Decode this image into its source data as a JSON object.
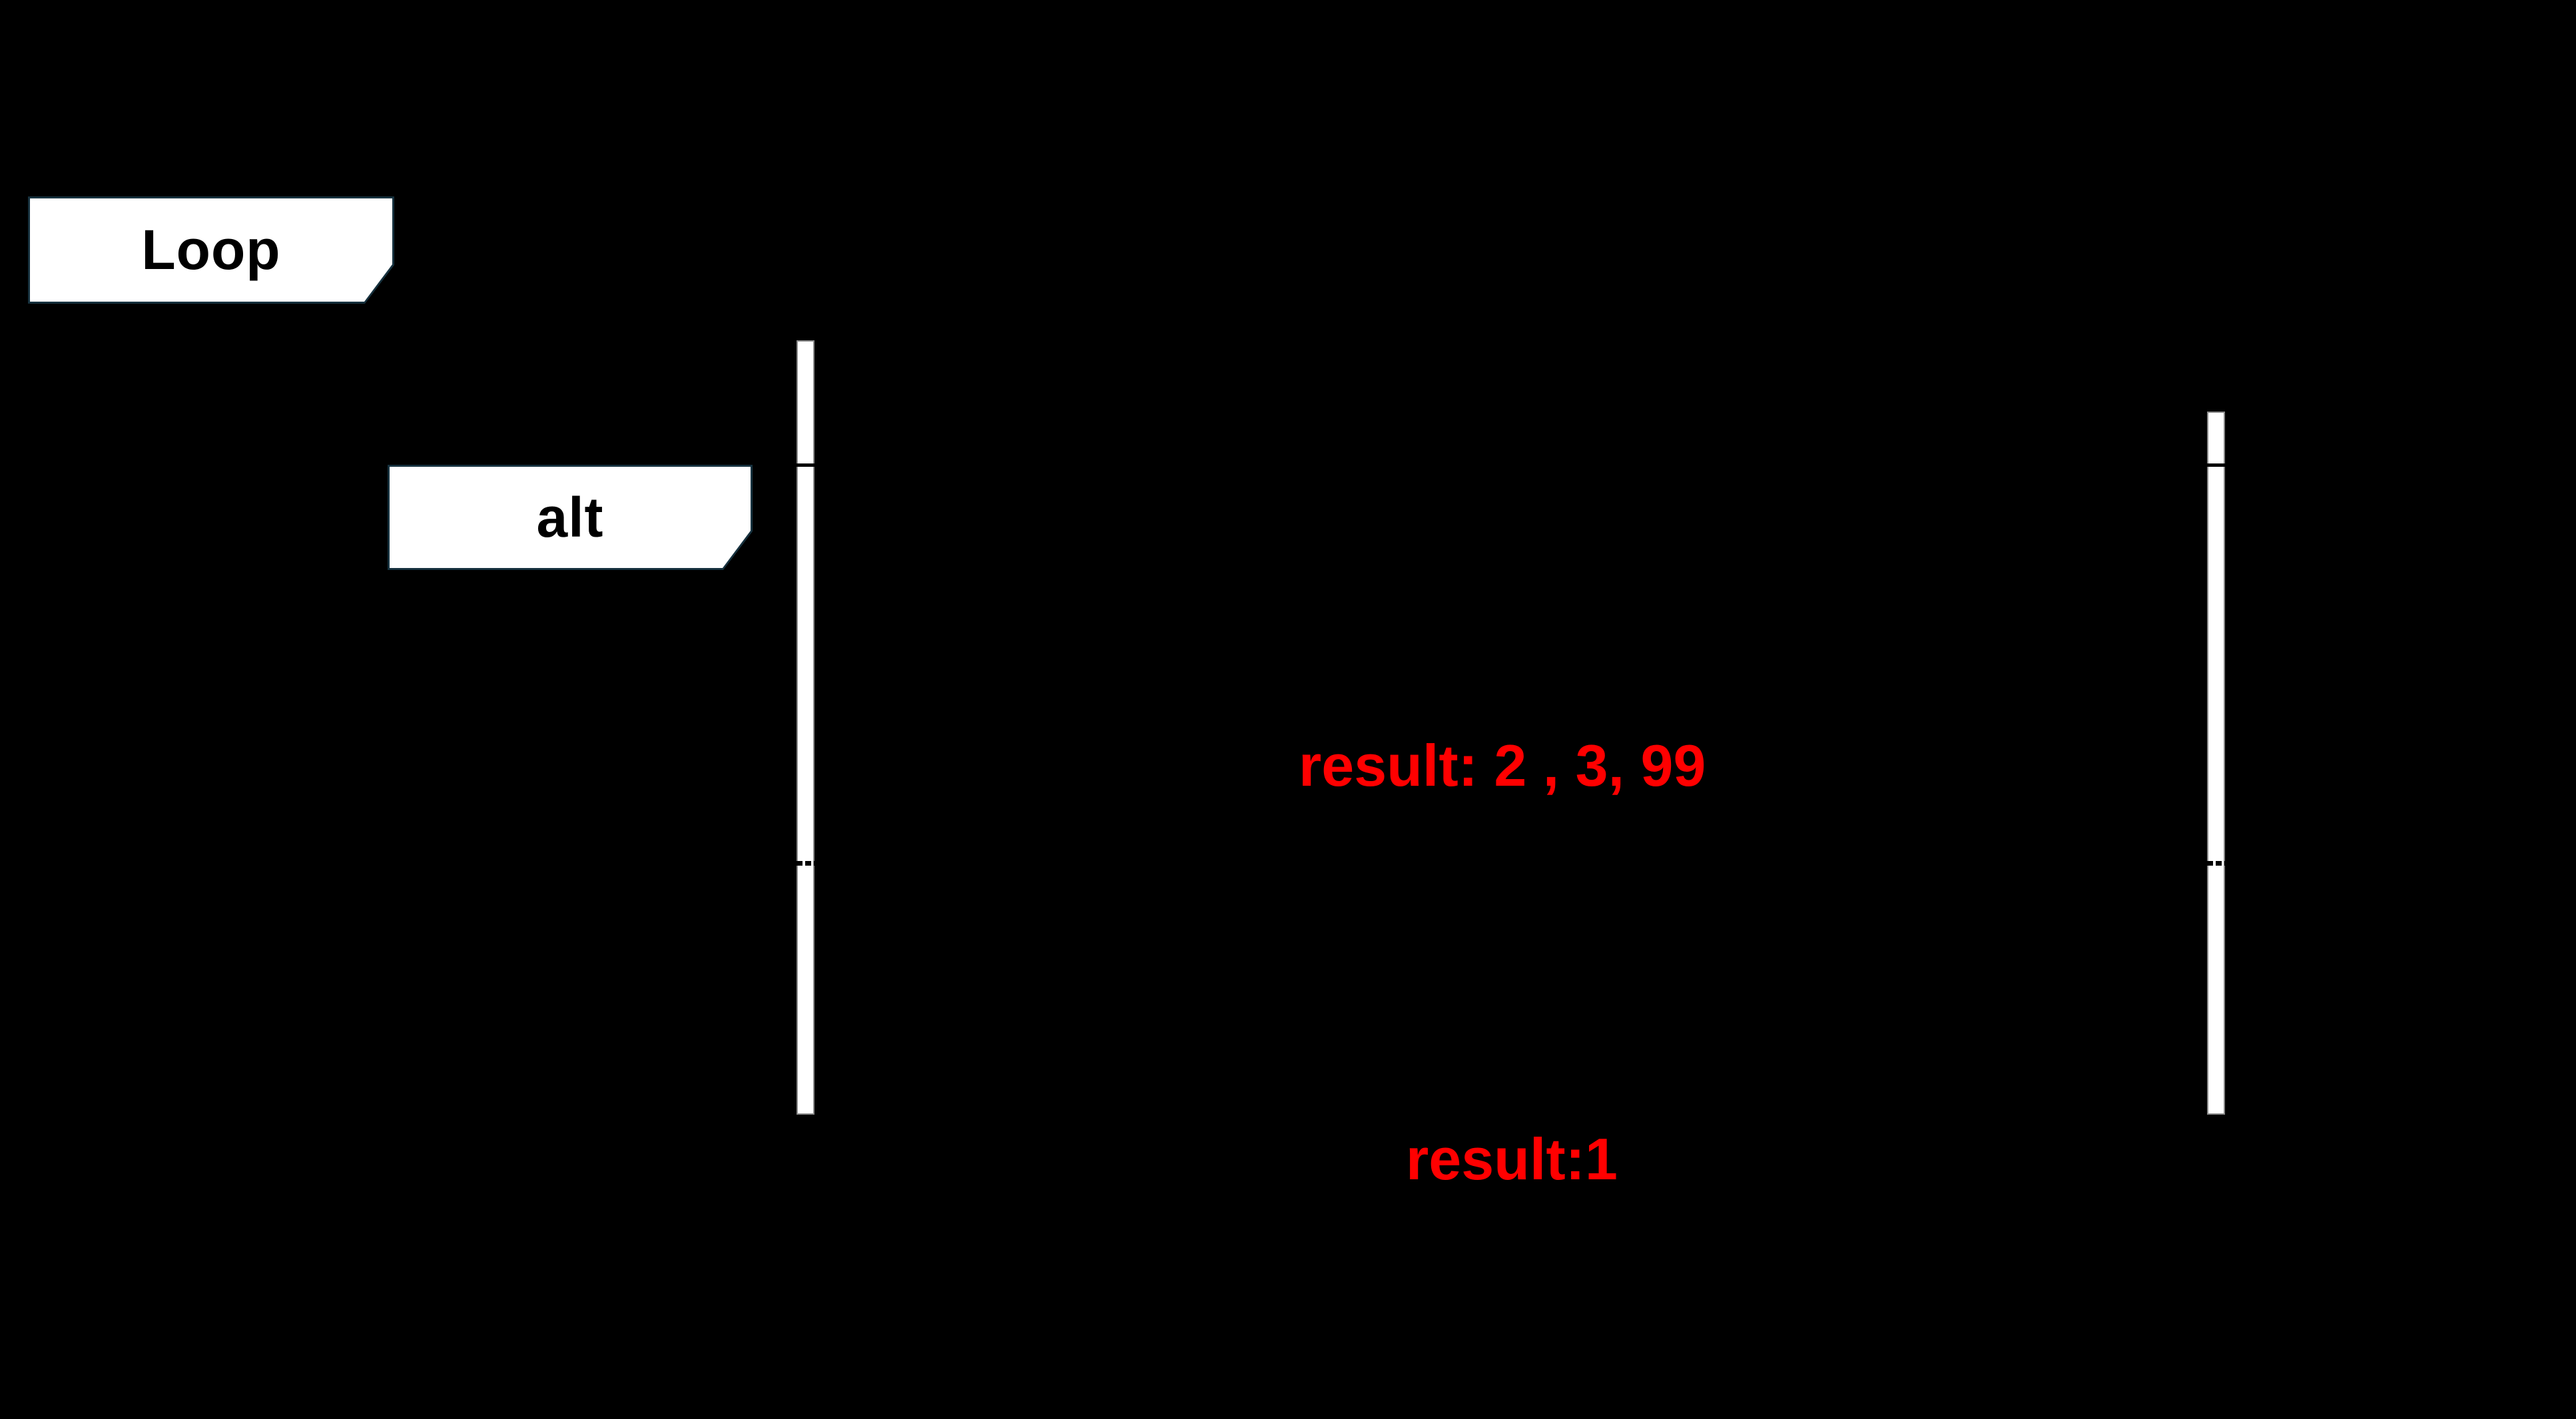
{
  "fragments": {
    "loop_label": "Loop",
    "alt_label": "alt"
  },
  "messages": {
    "result_list": "result: 2 , 3, 99",
    "result_one": "result:1"
  },
  "colors": {
    "background": "#000000",
    "label_fill": "#ffffff",
    "label_border": "#16313e",
    "label_text": "#000000",
    "bar_fill": "#ffffff",
    "bar_border": "#8a8a8a",
    "line": "#000000",
    "message_text": "#ff0000"
  }
}
